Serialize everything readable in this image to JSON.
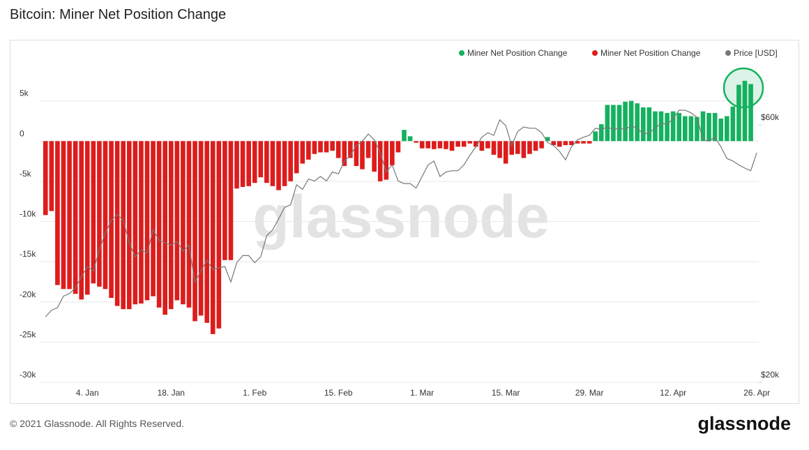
{
  "chart_data": {
    "type": "bar",
    "title": "Bitcoin: Miner Net Position Change",
    "watermark": "glassnode",
    "categories": [
      null,
      null,
      null,
      null,
      null,
      null,
      null,
      "4. Jan",
      null,
      null,
      null,
      null,
      null,
      null,
      null,
      null,
      null,
      null,
      null,
      null,
      null,
      "18. Jan",
      null,
      null,
      null,
      null,
      null,
      null,
      null,
      null,
      null,
      null,
      null,
      null,
      null,
      "1. Feb",
      null,
      null,
      null,
      null,
      null,
      null,
      null,
      null,
      null,
      null,
      null,
      null,
      null,
      "15. Feb",
      null,
      null,
      null,
      null,
      null,
      null,
      null,
      null,
      null,
      null,
      null,
      null,
      null,
      "1. Mar",
      null,
      null,
      null,
      null,
      null,
      null,
      null,
      null,
      null,
      null,
      null,
      null,
      null,
      "15. Mar",
      null,
      null,
      null,
      null,
      null,
      null,
      null,
      null,
      null,
      null,
      null,
      null,
      null,
      "29. Mar",
      null,
      null,
      null,
      null,
      null,
      null,
      null,
      null,
      null,
      null,
      null,
      null,
      null,
      "12. Apr",
      null,
      null,
      null,
      null,
      null,
      null,
      null,
      null,
      null,
      null,
      null,
      null,
      null,
      "26. Apr"
    ],
    "series": [
      {
        "name": "Miner Net Position Change",
        "color": "#15b15f",
        "values": [
          null,
          null,
          null,
          null,
          null,
          null,
          null,
          null,
          null,
          null,
          null,
          null,
          null,
          null,
          null,
          null,
          null,
          null,
          null,
          null,
          null,
          null,
          null,
          null,
          null,
          null,
          null,
          null,
          null,
          null,
          null,
          null,
          null,
          null,
          null,
          null,
          null,
          null,
          null,
          null,
          null,
          null,
          null,
          null,
          null,
          null,
          null,
          null,
          null,
          null,
          null,
          null,
          null,
          null,
          null,
          null,
          null,
          null,
          null,
          null,
          1400,
          600,
          null,
          null,
          null,
          null,
          null,
          null,
          null,
          null,
          null,
          null,
          null,
          null,
          null,
          null,
          null,
          null,
          null,
          null,
          null,
          null,
          null,
          null,
          500,
          null,
          null,
          null,
          null,
          null,
          null,
          null,
          1200,
          2100,
          4500,
          4500,
          4500,
          4900,
          5000,
          4700,
          4200,
          4200,
          3700,
          3700,
          3500,
          3700,
          3500,
          3100,
          3100,
          3000,
          3700,
          3500,
          3500,
          2800,
          3100,
          4300,
          7000,
          7500,
          7100,
          null
        ]
      },
      {
        "name": "Miner Net Position Change",
        "color": "#dd1c1c",
        "values": [
          -9200,
          -8700,
          -17900,
          -18400,
          -18400,
          -19000,
          -19700,
          -19100,
          -17700,
          -18100,
          -18400,
          -19500,
          -20500,
          -20900,
          -20900,
          -20300,
          -20200,
          -19800,
          -19300,
          -20700,
          -21600,
          -20900,
          -19800,
          -20300,
          -20700,
          -22400,
          -21700,
          -22600,
          -24000,
          -23300,
          -14800,
          -14800,
          -5900,
          -5700,
          -5600,
          -5200,
          -4500,
          -5200,
          -5600,
          -6100,
          -5600,
          -5000,
          -4000,
          -2800,
          -2300,
          -1600,
          -1400,
          -1400,
          -1200,
          -2100,
          -3100,
          -2100,
          -3100,
          -3500,
          -2100,
          -3800,
          -5000,
          -4800,
          -3000,
          -1400,
          null,
          null,
          -200,
          -900,
          -900,
          -1000,
          -900,
          -1000,
          -1200,
          -700,
          -700,
          -300,
          -700,
          -1200,
          -900,
          -1700,
          -2100,
          -2800,
          -1700,
          -1600,
          -2100,
          -1600,
          -1200,
          -900,
          null,
          -500,
          -700,
          -500,
          -500,
          -300,
          -300,
          -300,
          null,
          null,
          null,
          null,
          null,
          null,
          null,
          null,
          null,
          null,
          null,
          null,
          null,
          null,
          null,
          null,
          null,
          null,
          null,
          null,
          null,
          null,
          null,
          null,
          null,
          null,
          null,
          null
        ]
      },
      {
        "name": "Price [USD]",
        "color": "#777777",
        "type": "line",
        "axis": "y2",
        "values": [
          30200,
          31200,
          31600,
          33400,
          33800,
          34700,
          36400,
          38000,
          37300,
          40600,
          43200,
          45200,
          46100,
          45200,
          41700,
          39500,
          40600,
          40100,
          43700,
          42100,
          41700,
          41300,
          41900,
          40400,
          41300,
          35600,
          37300,
          39000,
          37500,
          37800,
          38000,
          35600,
          38600,
          39700,
          39700,
          38600,
          39500,
          42800,
          43700,
          45400,
          47200,
          47600,
          50700,
          50000,
          51600,
          51300,
          52000,
          51300,
          52700,
          52400,
          54400,
          55300,
          56800,
          57500,
          58600,
          57700,
          55700,
          52700,
          53800,
          51300,
          50900,
          50900,
          50200,
          52000,
          53800,
          54400,
          52000,
          52700,
          52900,
          52900,
          53800,
          55300,
          56600,
          58100,
          58800,
          58400,
          60800,
          59900,
          56800,
          59000,
          59700,
          59500,
          59500,
          58800,
          57300,
          56800,
          55900,
          54600,
          56600,
          57700,
          58100,
          58400,
          59500,
          59300,
          59700,
          59300,
          59500,
          59300,
          59900,
          59500,
          58600,
          58800,
          59500,
          60300,
          60100,
          61000,
          62300,
          62300,
          61900,
          61200,
          57700,
          57500,
          58100,
          56600,
          54800,
          54400,
          53800,
          53300,
          52900,
          55700
        ]
      }
    ],
    "ylim": [
      -30000,
      10000
    ],
    "yticks": [
      {
        "value": -30000,
        "label": "-30k"
      },
      {
        "value": -25000,
        "label": "-25k"
      },
      {
        "value": -20000,
        "label": "-20k"
      },
      {
        "value": -15000,
        "label": "-15k"
      },
      {
        "value": -10000,
        "label": "-10k"
      },
      {
        "value": -5000,
        "label": "-5k"
      },
      0,
      {
        "value": 5000,
        "label": "5k"
      }
    ],
    "y2lim": [
      20000,
      70000
    ],
    "y2ticks": [
      {
        "value": 20000,
        "label": "$20k"
      },
      {
        "value": 60000,
        "label": "$60k"
      }
    ],
    "grid": true,
    "legend": "top-right"
  },
  "footer": {
    "copyright": "© 2021 Glassnode. All Rights Reserved.",
    "logo": "glassnode"
  }
}
